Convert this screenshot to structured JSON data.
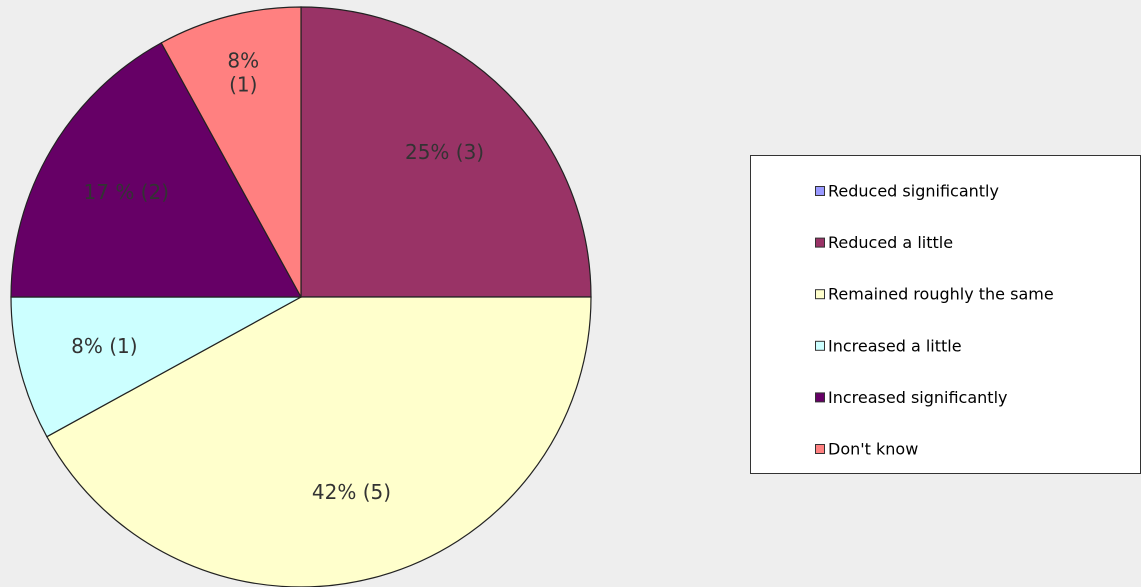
{
  "chart_data": {
    "type": "pie",
    "categories": [
      "Reduced significantly",
      "Reduced a little",
      "Remained roughly the same",
      "Increased a little",
      "Increased significantly",
      "Don't know"
    ],
    "values": [
      0,
      25,
      42,
      8,
      17,
      8
    ],
    "value_labels": [
      null,
      "25% (3)",
      "42% (5)",
      "8% (1)",
      "17 % (2)",
      "8% (1)"
    ],
    "colors": [
      "#9999ff",
      "#993366",
      "#ffffcc",
      "#ccffff",
      "#660066",
      "#ff8080"
    ],
    "legend": "right"
  }
}
